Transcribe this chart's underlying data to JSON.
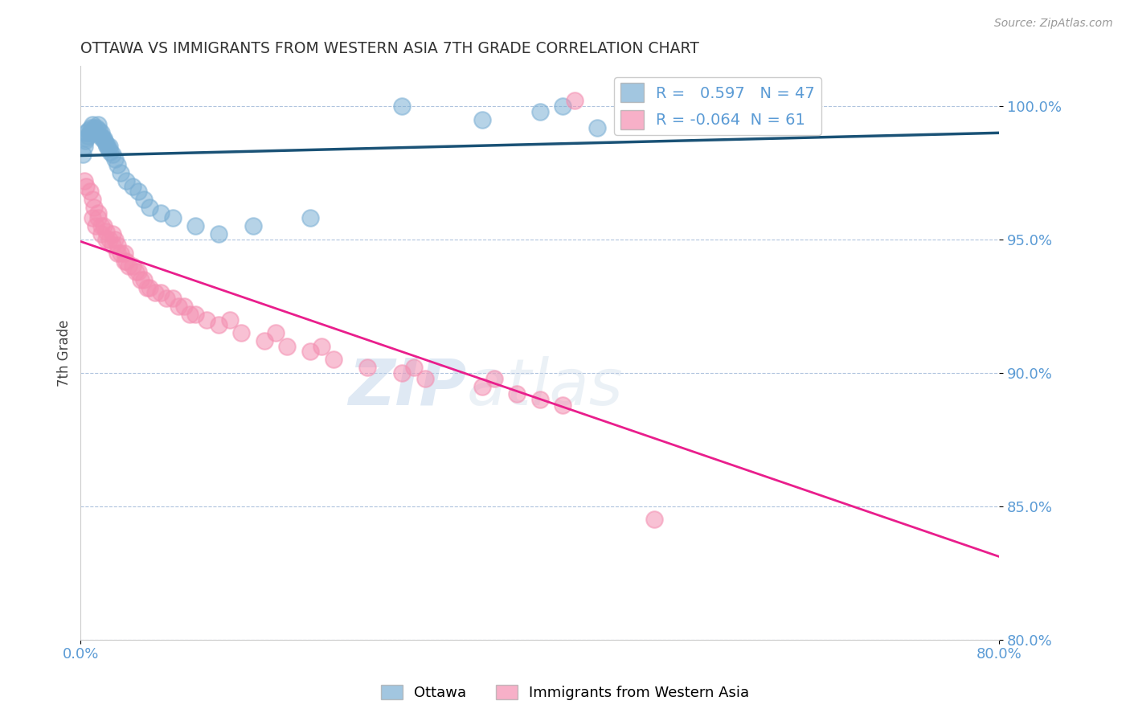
{
  "title": "OTTAWA VS IMMIGRANTS FROM WESTERN ASIA 7TH GRADE CORRELATION CHART",
  "source_text": "Source: ZipAtlas.com",
  "ylabel": "7th Grade",
  "xlim": [
    0.0,
    80.0
  ],
  "ylim": [
    80.0,
    101.5
  ],
  "yticks": [
    80.0,
    85.0,
    90.0,
    95.0,
    100.0
  ],
  "ytick_labels": [
    "80.0%",
    "85.0%",
    "90.0%",
    "95.0%",
    "100.0%"
  ],
  "blue_R": 0.597,
  "blue_N": 47,
  "pink_R": -0.064,
  "pink_N": 61,
  "legend_label_blue": "Ottawa",
  "legend_label_pink": "Immigrants from Western Asia",
  "blue_color": "#7bafd4",
  "pink_color": "#f48fb1",
  "blue_line_color": "#1a5276",
  "pink_line_color": "#e91e8c",
  "title_color": "#333333",
  "axis_label_color": "#5b9bd5",
  "grid_color": "#b0c4de",
  "watermark_color": "#c8d8e8",
  "blue_x": [
    0.2,
    0.3,
    0.4,
    0.5,
    0.5,
    0.6,
    0.7,
    0.8,
    0.9,
    1.0,
    1.0,
    1.1,
    1.2,
    1.3,
    1.4,
    1.5,
    1.6,
    1.7,
    1.8,
    1.9,
    2.0,
    2.1,
    2.2,
    2.3,
    2.4,
    2.5,
    2.6,
    2.8,
    3.0,
    3.2,
    3.5,
    4.0,
    4.5,
    5.0,
    5.5,
    6.0,
    7.0,
    8.0,
    10.0,
    12.0,
    15.0,
    20.0,
    28.0,
    35.0,
    40.0,
    42.0,
    45.0
  ],
  "blue_y": [
    98.2,
    98.5,
    98.7,
    98.8,
    99.0,
    98.9,
    99.1,
    99.0,
    99.2,
    99.0,
    99.3,
    99.1,
    99.2,
    99.0,
    99.2,
    99.3,
    99.1,
    98.9,
    99.0,
    98.8,
    98.8,
    98.7,
    98.6,
    98.5,
    98.4,
    98.5,
    98.3,
    98.2,
    98.0,
    97.8,
    97.5,
    97.2,
    97.0,
    96.8,
    96.5,
    96.2,
    96.0,
    95.8,
    95.5,
    95.2,
    95.5,
    95.8,
    100.0,
    99.5,
    99.8,
    100.0,
    99.2
  ],
  "pink_x": [
    0.3,
    0.5,
    0.8,
    1.0,
    1.2,
    1.5,
    1.5,
    1.8,
    2.0,
    2.2,
    2.5,
    2.8,
    3.0,
    3.2,
    3.5,
    3.8,
    4.0,
    4.5,
    5.0,
    5.5,
    6.0,
    7.0,
    8.0,
    9.0,
    10.0,
    11.0,
    12.0,
    14.0,
    16.0,
    18.0,
    20.0,
    22.0,
    25.0,
    28.0,
    30.0,
    35.0,
    38.0,
    40.0,
    42.0,
    1.0,
    1.3,
    1.8,
    2.2,
    2.8,
    3.2,
    3.8,
    4.2,
    4.8,
    5.2,
    5.8,
    6.5,
    7.5,
    8.5,
    9.5,
    13.0,
    17.0,
    21.0,
    29.0,
    36.0,
    43.0,
    50.0
  ],
  "pink_y": [
    97.2,
    97.0,
    96.8,
    96.5,
    96.2,
    96.0,
    95.8,
    95.5,
    95.5,
    95.3,
    95.0,
    95.2,
    95.0,
    94.8,
    94.5,
    94.5,
    94.2,
    94.0,
    93.8,
    93.5,
    93.2,
    93.0,
    92.8,
    92.5,
    92.2,
    92.0,
    91.8,
    91.5,
    91.2,
    91.0,
    90.8,
    90.5,
    90.2,
    90.0,
    89.8,
    89.5,
    89.2,
    89.0,
    88.8,
    95.8,
    95.5,
    95.2,
    95.0,
    94.8,
    94.5,
    94.2,
    94.0,
    93.8,
    93.5,
    93.2,
    93.0,
    92.8,
    92.5,
    92.2,
    92.0,
    91.5,
    91.0,
    90.2,
    89.8,
    100.2,
    84.5
  ]
}
